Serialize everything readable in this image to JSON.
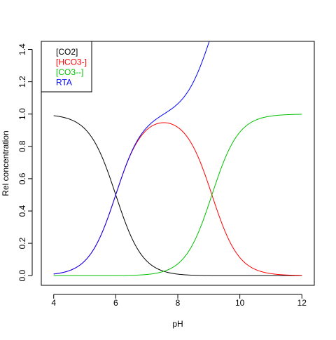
{
  "chart_data": {
    "type": "line",
    "title": "",
    "xlabel": "pH",
    "ylabel": "Rel concentration",
    "xlim": [
      3.6,
      12.4
    ],
    "ylim": [
      -0.06,
      1.45
    ],
    "xticks": [
      4,
      6,
      8,
      10,
      12
    ],
    "yticks": [
      0.0,
      0.2,
      0.4,
      0.6,
      0.8,
      1.0,
      1.2,
      1.4
    ],
    "xtick_labels": [
      "4",
      "6",
      "8",
      "10",
      "12"
    ],
    "ytick_labels": [
      "0.0",
      "0.2",
      "0.4",
      "0.6",
      "0.8",
      "1.0",
      "1.2",
      "1.4"
    ],
    "grid": false,
    "legend": "top-left",
    "pKa1": 6.0,
    "pKa2": 9.1,
    "series": [
      {
        "name": "[CO2]",
        "color": "#000000",
        "key": "co2"
      },
      {
        "name": "[HCO3-]",
        "color": "#ff0000",
        "key": "hco3"
      },
      {
        "name": "[CO3--]",
        "color": "#00c000",
        "key": "co3"
      },
      {
        "name": "RTA",
        "color": "#0000ff",
        "key": "rta"
      }
    ]
  }
}
